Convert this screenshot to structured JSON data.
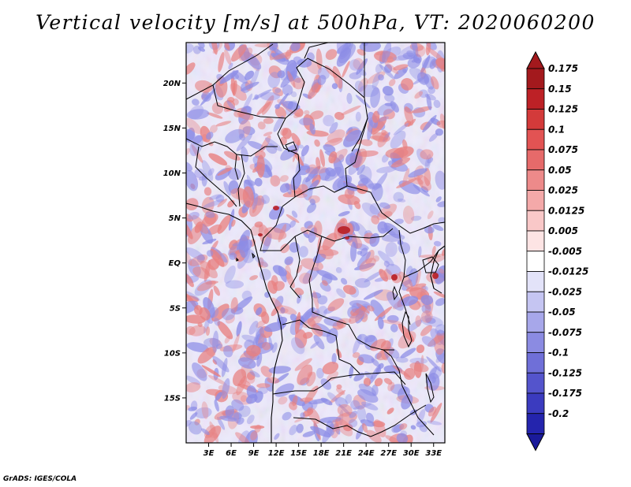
{
  "title": "Vertical velocity [m/s] at 500hPa, VT: 2020060200",
  "credit": "GrADS: IGES/COLA",
  "map": {
    "lat_range": [
      -20,
      24.5
    ],
    "lon_range": [
      0,
      34.5
    ],
    "lat_ticks": [
      {
        "value": 20,
        "label": "20N"
      },
      {
        "value": 15,
        "label": "15N"
      },
      {
        "value": 10,
        "label": "10N"
      },
      {
        "value": 5,
        "label": "5N"
      },
      {
        "value": 0,
        "label": "EQ"
      },
      {
        "value": -5,
        "label": "5S"
      },
      {
        "value": -10,
        "label": "10S"
      },
      {
        "value": -15,
        "label": "15S"
      }
    ],
    "lon_ticks": [
      {
        "value": 3,
        "label": "3E"
      },
      {
        "value": 6,
        "label": "6E"
      },
      {
        "value": 9,
        "label": "9E"
      },
      {
        "value": 12,
        "label": "12E"
      },
      {
        "value": 15,
        "label": "15E"
      },
      {
        "value": 18,
        "label": "18E"
      },
      {
        "value": 21,
        "label": "21E"
      },
      {
        "value": 24,
        "label": "24E"
      },
      {
        "value": 27,
        "label": "27E"
      },
      {
        "value": 30,
        "label": "30E"
      },
      {
        "value": 33,
        "label": "33E"
      }
    ]
  },
  "colorbar": {
    "levels": [
      {
        "label": "0.175",
        "color": "#a3191d"
      },
      {
        "label": "0.15",
        "color": "#bd2126"
      },
      {
        "label": "0.125",
        "color": "#d33a3a"
      },
      {
        "label": "0.1",
        "color": "#e25353"
      },
      {
        "label": "0.075",
        "color": "#e66a6a"
      },
      {
        "label": "0.05",
        "color": "#ed8a8a"
      },
      {
        "label": "0.025",
        "color": "#f4a9a9"
      },
      {
        "label": "0.0125",
        "color": "#f9c8c8"
      },
      {
        "label": "0.005",
        "color": "#fde4e4"
      },
      {
        "label": "-0.005",
        "color": "#ffffff"
      },
      {
        "label": "-0.0125",
        "color": "#e3e3f9"
      },
      {
        "label": "-0.025",
        "color": "#c5c5f2"
      },
      {
        "label": "-0.05",
        "color": "#a7a7ea"
      },
      {
        "label": "-0.075",
        "color": "#8b8be2"
      },
      {
        "label": "-0.1",
        "color": "#6f6fd8"
      },
      {
        "label": "-0.125",
        "color": "#5454cc"
      },
      {
        "label": "-0.175",
        "color": "#3b3bbf"
      },
      {
        "label": "-0.2",
        "color": "#2424ad"
      }
    ],
    "top_color": "#a3191d",
    "bottom_color": "#1a1a9a"
  },
  "field_colors": {
    "positive": "#e88080",
    "negative": "#8c8ce6",
    "strong_positive": "#b81e24",
    "background": "#eeeafc"
  }
}
